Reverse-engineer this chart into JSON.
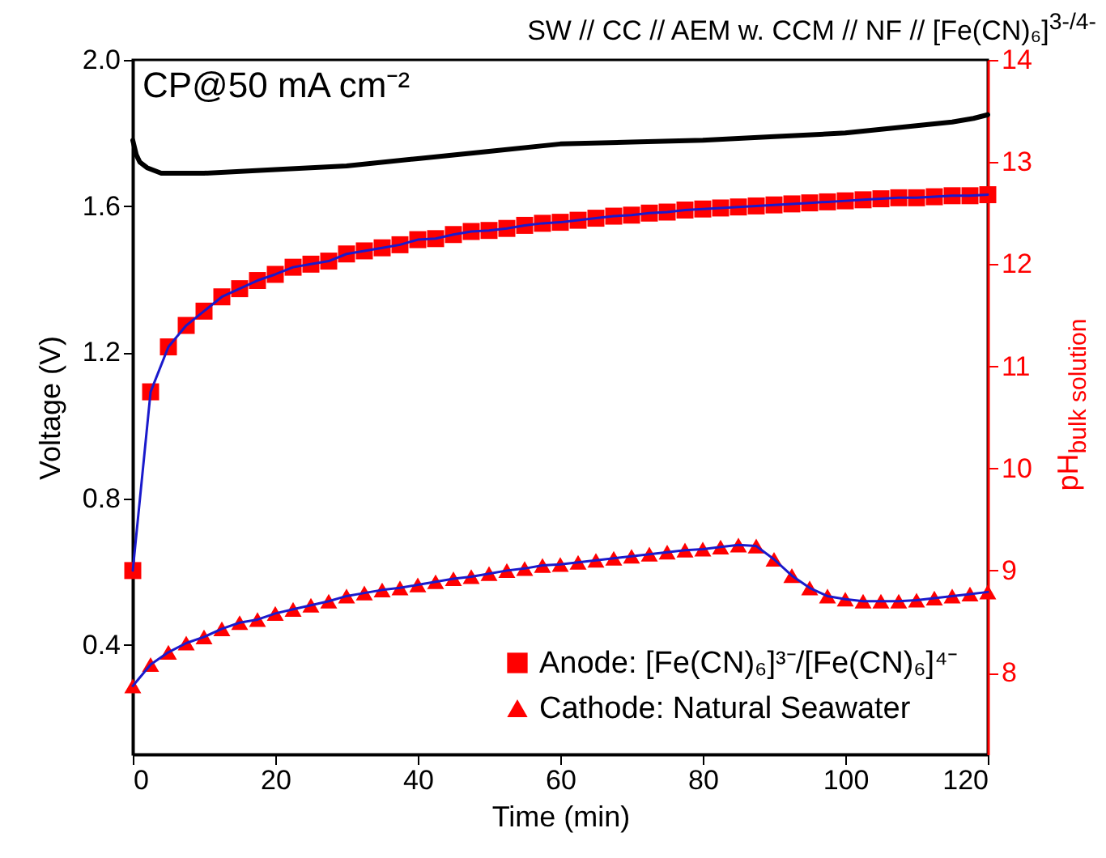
{
  "chart_data": {
    "type": "line",
    "title": "SW // CC // AEM w. CCM // NF // [Fe(CN)₆]$^{3-/4-}$",
    "xlabel": "Time (min)",
    "ylabel": "Voltage (V)",
    "y2label": "pH$_{bulk solution}$",
    "annotations": [
      "CP@50 mA cm⁻²"
    ],
    "x": [
      0,
      2.5,
      5,
      7.5,
      10,
      12.5,
      15,
      17.5,
      20,
      22.5,
      25,
      27.5,
      30,
      32.5,
      35,
      37.5,
      40,
      42.5,
      45,
      47.5,
      50,
      52.5,
      55,
      57.5,
      60,
      62.5,
      65,
      67.5,
      70,
      72.5,
      75,
      77.5,
      80,
      82.5,
      85,
      87.5,
      90,
      92.5,
      95,
      97.5,
      100,
      102.5,
      105,
      107.5,
      110,
      112.5,
      115,
      117.5,
      120
    ],
    "series": [
      {
        "type": "line",
        "color": "#000000",
        "x": [
          0,
          0.5,
          1,
          2,
          4,
          10,
          20,
          30,
          40,
          50,
          60,
          70,
          80,
          90,
          100,
          105,
          110,
          115,
          118,
          120
        ],
        "values": [
          1.78,
          1.74,
          1.72,
          1.705,
          1.69,
          1.69,
          1.7,
          1.71,
          1.73,
          1.75,
          1.77,
          1.775,
          1.78,
          1.79,
          1.8,
          1.81,
          1.82,
          1.83,
          1.84,
          1.85
        ]
      },
      {
        "type": "line",
        "name": "Anode: [Fe(CN)₆]³⁻/[Fe(CN)₆]⁴⁻",
        "color": "#ff0000",
        "marker": "square",
        "axis": "y2",
        "values": [
          9.0,
          10.75,
          11.19,
          11.4,
          11.54,
          11.68,
          11.76,
          11.84,
          11.9,
          11.97,
          12.0,
          12.03,
          12.1,
          12.13,
          12.16,
          12.19,
          12.24,
          12.25,
          12.29,
          12.32,
          12.33,
          12.35,
          12.38,
          12.4,
          12.41,
          12.43,
          12.45,
          12.47,
          12.48,
          12.5,
          12.51,
          12.53,
          12.54,
          12.55,
          12.56,
          12.57,
          12.58,
          12.59,
          12.6,
          12.61,
          12.62,
          12.63,
          12.64,
          12.65,
          12.65,
          12.66,
          12.67,
          12.67,
          12.68
        ]
      },
      {
        "type": "line",
        "name": "Cathode: Natural Seawater",
        "color": "#ff0000",
        "marker": "triangle",
        "axis": "y2",
        "values": [
          7.87,
          8.08,
          8.2,
          8.29,
          8.35,
          8.43,
          8.49,
          8.52,
          8.58,
          8.62,
          8.66,
          8.7,
          8.75,
          8.78,
          8.81,
          8.83,
          8.86,
          8.89,
          8.92,
          8.94,
          8.97,
          9.0,
          9.02,
          9.05,
          9.06,
          9.08,
          9.1,
          9.12,
          9.14,
          9.16,
          9.18,
          9.2,
          9.21,
          9.23,
          9.25,
          9.24,
          9.11,
          8.95,
          8.83,
          8.75,
          8.72,
          8.7,
          8.7,
          8.7,
          8.71,
          8.73,
          8.75,
          8.77,
          8.79
        ]
      }
    ],
    "xlim": [
      0,
      120
    ],
    "xticks": [
      0,
      20,
      40,
      60,
      80,
      100,
      120
    ],
    "ylim": [
      0.1,
      2.0
    ],
    "yticks": [
      0.4,
      0.8,
      1.2,
      1.6,
      {
        "value": 2.0,
        "label": "2.0"
      }
    ],
    "y2lim": [
      7.2,
      14
    ],
    "y2ticks": [
      8,
      9,
      10,
      11,
      12,
      13,
      14
    ],
    "legend": "bottom right"
  }
}
